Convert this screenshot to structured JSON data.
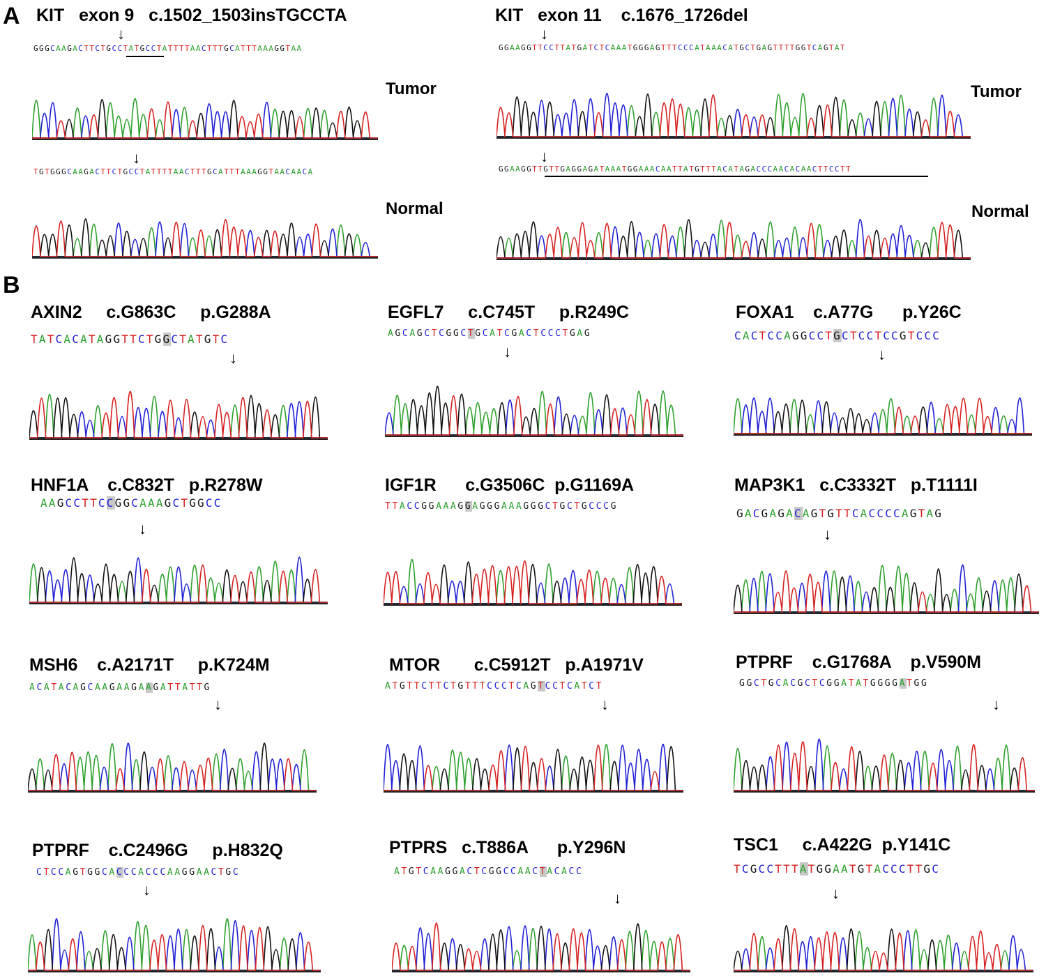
{
  "panel_a": {
    "letter": "A",
    "kit9": {
      "title": "KIT   exon 9   c.1502_1503insTGCCTA",
      "tumor_seq": "GGGCAAGACTTCTGCCTATGCCTATTTTAACTTTGCATTTAAAGGTAA",
      "normal_seq": "TGTGGGCAAGACTTCTGCCTATTTTAACTTTGCATTTAAAGGTAACAACA",
      "tumor_label": "Tumor",
      "normal_label": "Normal"
    },
    "kit11": {
      "title": "KIT   exon 11    c.1676_1726del",
      "tumor_seq": "GGAAGGTTCCTTATGATCTCAAATGGGAGTTTCCCATAAACATGCTGAGTTTTGGTCAGTAT",
      "normal_seq": "GGAAGGTTGTTGAGGAGATAAATGGAAACAATTATGTTTACATAGACCCAACACAACTTCCTT",
      "tumor_label": "Tumor",
      "normal_label": "Normal"
    }
  },
  "panel_b": {
    "letter": "B",
    "items": [
      {
        "title": "AXIN2     c.G863C     p.G288A",
        "pre": "TATCACATAGGTTCTG",
        "mut": "G",
        "post": "CTATGTC"
      },
      {
        "title": "EGFL7     c.C745T     p.R249C",
        "pre": "AGCAGCTCGGC",
        "mut": "T",
        "post": "GCATCGACTCCCTGAG"
      },
      {
        "title": "FOXA1    c.A77G      p.Y26C",
        "pre": "CACTCCAGGCCT",
        "mut": "G",
        "post": "CTCCTCCGTCCC"
      },
      {
        "title": "HNF1A    c.C832T   p.R278W",
        "pre": "AAGCCTTC",
        "mut": "C",
        "post": "GGCAAAGCTGGCC"
      },
      {
        "title": "IGF1R      c.G3506C  p.G1169A",
        "pre": "TTACCGGAAAG",
        "mut": "G",
        "post": "AGGGAAAGGGCTGCTGCCCG"
      },
      {
        "title": "MAP3K1   c.C3332T   p.T1111I",
        "pre": "GACGAGA",
        "mut": "C",
        "post": "AGTGTTCACCCCAGTAG"
      },
      {
        "title": "MSH6    c.A2171T     p.K724M",
        "pre": "ACATACAGCAAGAAGA",
        "mut": "A",
        "post": "GATTATTG"
      },
      {
        "title": "MTOR       c.C5912T   p.A1971V",
        "pre": "ATGTTCTTCTGTTTCCCTCAG",
        "mut": "T",
        "post": "CCTCATCT"
      },
      {
        "title": "PTPRF    c.G1768A    p.V590M",
        "pre": "GGCTGCACGCTCGGATATGGGG",
        "mut": "A",
        "post": "TGG"
      },
      {
        "title": "PTPRF    c.C2496G     p.H832Q",
        "pre": "CTCCAGTGGCA",
        "mut": "C",
        "post": "CCACCCAAGGAACTGC"
      },
      {
        "title": "PTPRS   c.T886A      p.Y296N",
        "pre": "ATGTCAAGGACTCGGCCAAC",
        "mut": "T",
        "post": "ACACC"
      },
      {
        "title": "TSC1     c.A422G  p.Y141C",
        "pre": "TCGCCTTT",
        "mut": "A",
        "post": "TGGAATGTACCCTTGC"
      }
    ]
  },
  "colors": {
    "A": "#2ca02c",
    "C": "#1f1fd6",
    "G": "#111111",
    "T": "#d62020"
  }
}
